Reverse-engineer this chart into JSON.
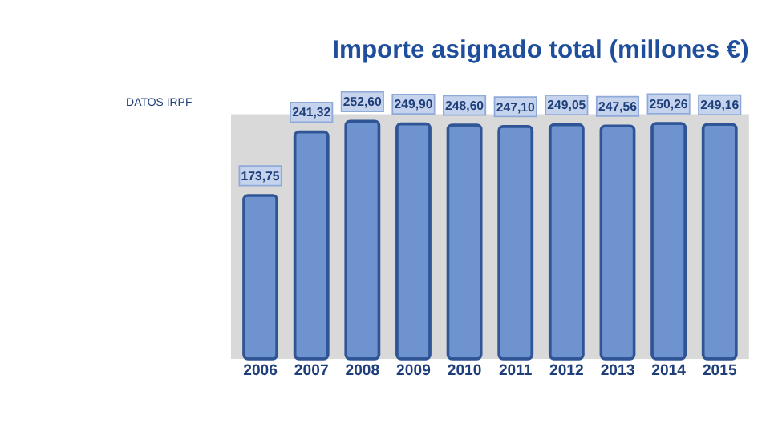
{
  "chart_data": {
    "type": "bar",
    "title": "Importe asignado total (millones €)",
    "annotations": [
      "DATOS IRPF"
    ],
    "categories": [
      "2006",
      "2007",
      "2008",
      "2009",
      "2010",
      "2011",
      "2012",
      "2013",
      "2014",
      "2015"
    ],
    "values": [
      173.75,
      241.32,
      252.6,
      249.9,
      248.6,
      247.1,
      249.05,
      247.56,
      250.26,
      249.16
    ],
    "value_labels": [
      "173,75",
      "241,32",
      "252,60",
      "249,90",
      "248,60",
      "247,10",
      "249,05",
      "247,56",
      "250,26",
      "249,16"
    ],
    "color": "#6f93cf"
  }
}
